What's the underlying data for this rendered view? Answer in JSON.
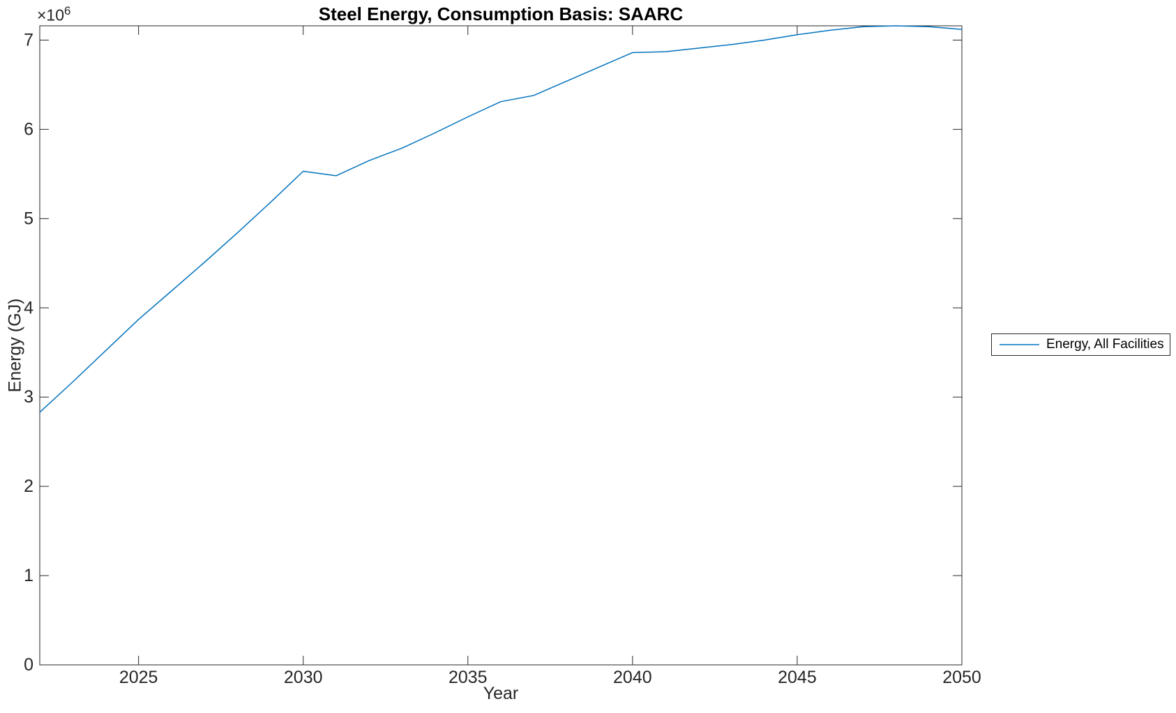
{
  "figure": {
    "background": "#ffffff",
    "axes_color": "#262626",
    "label_color": "#262626"
  },
  "chart_data": {
    "type": "line",
    "title": "Steel Energy, Consumption Basis: SAARC",
    "xlabel": "Year",
    "ylabel": "Energy (GJ)",
    "y_axis_multiplier": {
      "base": "×10",
      "exponent": "6"
    },
    "xlim": [
      2022,
      2050
    ],
    "ylim": [
      0,
      7160000
    ],
    "x_ticks": [
      2025,
      2030,
      2035,
      2040,
      2045,
      2050
    ],
    "x_tick_labels": [
      "2025",
      "2030",
      "2035",
      "2040",
      "2045",
      "2050"
    ],
    "y_ticks": [
      0,
      1000000,
      2000000,
      3000000,
      4000000,
      5000000,
      6000000,
      7000000
    ],
    "y_tick_labels": [
      "0",
      "1",
      "2",
      "3",
      "4",
      "5",
      "6",
      "7"
    ],
    "grid": false,
    "box": true,
    "legend": {
      "position": "right-outside",
      "entries": [
        {
          "label": "Energy, All Facilities",
          "color": "#0072bd"
        }
      ]
    },
    "series": [
      {
        "name": "Energy, All Facilities",
        "color": "#0072bd",
        "x": [
          2022,
          2023,
          2024,
          2025,
          2026,
          2027,
          2028,
          2029,
          2030,
          2031,
          2032,
          2033,
          2034,
          2035,
          2036,
          2037,
          2038,
          2039,
          2040,
          2041,
          2042,
          2043,
          2044,
          2045,
          2046,
          2047,
          2048,
          2049,
          2050
        ],
        "y": [
          2830000,
          3170000,
          3520000,
          3870000,
          4190000,
          4510000,
          4840000,
          5180000,
          5530000,
          5480000,
          5650000,
          5790000,
          5960000,
          6140000,
          6310000,
          6380000,
          6540000,
          6700000,
          6860000,
          6870000,
          6910000,
          6950000,
          7000000,
          7060000,
          7110000,
          7150000,
          7160000,
          7150000,
          7120000
        ]
      }
    ]
  }
}
